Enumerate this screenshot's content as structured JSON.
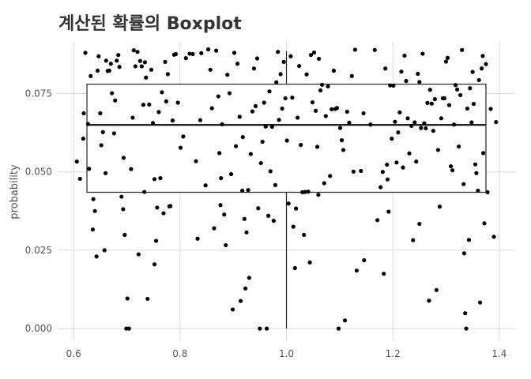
{
  "chart_data": {
    "type": "boxplot",
    "title": "계산된 확률의 Boxplot",
    "xlabel": "",
    "ylabel": "probability",
    "xlim": [
      0.57,
      1.43
    ],
    "ylim": [
      -0.004,
      0.0915
    ],
    "x_ticks": [
      0.6,
      0.8,
      1.0,
      1.2,
      1.4
    ],
    "x_tick_labels": [
      "0.6",
      "0.8",
      "1.0",
      "1.2",
      "1.4"
    ],
    "y_ticks": [
      0.0,
      0.025,
      0.05,
      0.075
    ],
    "y_tick_labels": [
      "0.000",
      "0.025",
      "0.050",
      "0.075"
    ],
    "grid": true,
    "box": {
      "x_center": 1.0,
      "x_from": 0.625,
      "x_to": 1.375,
      "q1": 0.0435,
      "median": 0.065,
      "q3": 0.078,
      "whisker_low": 0.0,
      "whisker_high": 0.0885
    },
    "points": [
      [
        0.606,
        0.0533
      ],
      [
        0.612,
        0.0478
      ],
      [
        0.618,
        0.0606
      ],
      [
        0.619,
        0.0687
      ],
      [
        0.622,
        0.088
      ],
      [
        0.627,
        0.0653
      ],
      [
        0.629,
        0.051
      ],
      [
        0.632,
        0.0806
      ],
      [
        0.636,
        0.0316
      ],
      [
        0.637,
        0.0413
      ],
      [
        0.64,
        0.0375
      ],
      [
        0.643,
        0.023
      ],
      [
        0.645,
        0.0823
      ],
      [
        0.647,
        0.0869
      ],
      [
        0.65,
        0.0687
      ],
      [
        0.652,
        0.0585
      ],
      [
        0.655,
        0.0627
      ],
      [
        0.658,
        0.025
      ],
      [
        0.661,
        0.0855
      ],
      [
        0.664,
        0.0822
      ],
      [
        0.667,
        0.0823
      ],
      [
        0.67,
        0.0845
      ],
      [
        0.672,
        0.0751
      ],
      [
        0.676,
        0.0623
      ],
      [
        0.678,
        0.0728
      ],
      [
        0.681,
        0.0855
      ],
      [
        0.684,
        0.0873
      ],
      [
        0.686,
        0.0835
      ],
      [
        0.69,
        0.0421
      ],
      [
        0.693,
        0.0381
      ],
      [
        0.696,
        0.0299
      ],
      [
        0.699,
        0.0
      ],
      [
        0.701,
        0.0096
      ],
      [
        0.704,
        0.0
      ],
      [
        0.708,
        0.0509
      ],
      [
        0.711,
        0.0673
      ],
      [
        0.713,
        0.0888
      ],
      [
        0.716,
        0.0837
      ],
      [
        0.72,
        0.0883
      ],
      [
        0.722,
        0.0237
      ],
      [
        0.725,
        0.0854
      ],
      [
        0.728,
        0.0837
      ],
      [
        0.731,
        0.0714
      ],
      [
        0.734,
        0.085
      ],
      [
        0.736,
        0.0801
      ],
      [
        0.739,
        0.0095
      ],
      [
        0.742,
        0.0715
      ],
      [
        0.746,
        0.0826
      ],
      [
        0.749,
        0.0656
      ],
      [
        0.752,
        0.0205
      ],
      [
        0.755,
        0.028
      ],
      [
        0.757,
        0.0386
      ],
      [
        0.76,
        0.0691
      ],
      [
        0.763,
        0.048
      ],
      [
        0.766,
        0.0754
      ],
      [
        0.769,
        0.0368
      ],
      [
        0.772,
        0.0851
      ],
      [
        0.774,
        0.0725
      ],
      [
        0.777,
        0.0812
      ],
      [
        0.78,
        0.039
      ],
      [
        0.782,
        0.0391
      ],
      [
        0.786,
        0.0664
      ],
      [
        0.789,
        0.0874
      ],
      [
        0.792,
        0.0876
      ],
      [
        0.796,
        0.0721
      ],
      [
        0.801,
        0.0577
      ],
      [
        0.806,
        0.0613
      ],
      [
        0.811,
        0.0863
      ],
      [
        0.818,
        0.0877
      ],
      [
        0.824,
        0.0876
      ],
      [
        0.83,
        0.0534
      ],
      [
        0.833,
        0.0287
      ],
      [
        0.84,
        0.0879
      ],
      [
        0.848,
        0.0457
      ],
      [
        0.853,
        0.0891
      ],
      [
        0.857,
        0.0826
      ],
      [
        0.86,
        0.0703
      ],
      [
        0.864,
        0.032
      ],
      [
        0.868,
        0.0887
      ],
      [
        0.872,
        0.0741
      ],
      [
        0.874,
        0.056
      ],
      [
        0.877,
        0.048
      ],
      [
        0.879,
        0.0652
      ],
      [
        0.883,
        0.0364
      ],
      [
        0.886,
        0.0266
      ],
      [
        0.889,
        0.081
      ],
      [
        0.893,
        0.0751
      ],
      [
        0.896,
        0.0493
      ],
      [
        0.899,
        0.0061
      ],
      [
        0.902,
        0.088
      ],
      [
        0.905,
        0.0582
      ],
      [
        0.908,
        0.0845
      ],
      [
        0.912,
        0.0676
      ],
      [
        0.914,
        0.0088
      ],
      [
        0.918,
        0.0611
      ],
      [
        0.921,
        0.035
      ],
      [
        0.923,
        0.0128
      ],
      [
        0.925,
        0.0307
      ],
      [
        0.928,
        0.0442
      ],
      [
        0.93,
        0.0162
      ],
      [
        0.933,
        0.0557
      ],
      [
        0.936,
        0.0693
      ],
      [
        0.939,
        0.083
      ],
      [
        0.942,
        0.071
      ],
      [
        0.945,
        0.0862
      ],
      [
        0.947,
        0.0384
      ],
      [
        0.95,
        0.0
      ],
      [
        0.952,
        0.0528
      ],
      [
        0.955,
        0.0596
      ],
      [
        0.958,
        0.0721
      ],
      [
        0.961,
        0.0645
      ],
      [
        0.963,
        0.0
      ],
      [
        0.966,
        0.036
      ],
      [
        0.968,
        0.0757
      ],
      [
        0.97,
        0.0502
      ],
      [
        0.973,
        0.0644
      ],
      [
        0.976,
        0.0344
      ],
      [
        0.979,
        0.0458
      ],
      [
        0.981,
        0.0786
      ],
      [
        0.984,
        0.0883
      ],
      [
        0.986,
        0.0666
      ],
      [
        0.989,
        0.0812
      ],
      [
        0.992,
        0.0702
      ],
      [
        0.995,
        0.0851
      ],
      [
        0.998,
        0.0735
      ],
      [
        1.001,
        0.06
      ],
      [
        1.004,
        0.0399
      ],
      [
        1.008,
        0.0869
      ],
      [
        1.011,
        0.0737
      ],
      [
        1.013,
        0.0325
      ],
      [
        1.016,
        0.0193
      ],
      [
        1.018,
        0.0383
      ],
      [
        1.021,
        0.0673
      ],
      [
        1.024,
        0.0838
      ],
      [
        1.027,
        0.0586
      ],
      [
        1.03,
        0.0435
      ],
      [
        1.033,
        0.0299
      ],
      [
        1.035,
        0.0436
      ],
      [
        1.038,
        0.0811
      ],
      [
        1.041,
        0.0437
      ],
      [
        1.044,
        0.0211
      ],
      [
        1.046,
        0.0873
      ],
      [
        1.049,
        0.0722
      ],
      [
        1.052,
        0.0881
      ],
      [
        1.055,
        0.0695
      ],
      [
        1.058,
        0.058
      ],
      [
        1.061,
        0.0861
      ],
      [
        1.064,
        0.076
      ],
      [
        1.067,
        0.0778
      ],
      [
        1.071,
        0.0464
      ],
      [
        1.074,
        0.0678
      ],
      [
        1.078,
        0.0773
      ],
      [
        1.082,
        0.0487
      ],
      [
        1.085,
        0.07
      ],
      [
        1.089,
        0.0823
      ],
      [
        1.092,
        0.0701
      ],
      [
        1.095,
        0.0704
      ],
      [
        1.098,
        0.0
      ],
      [
        1.101,
        0.064
      ],
      [
        1.104,
        0.0601
      ],
      [
        1.107,
        0.057
      ],
      [
        1.11,
        0.0026
      ],
      [
        1.114,
        0.0692
      ],
      [
        1.118,
        0.0657
      ],
      [
        1.123,
        0.0806
      ],
      [
        1.126,
        0.0501
      ],
      [
        1.129,
        0.089
      ],
      [
        1.132,
        0.0185
      ],
      [
        1.14,
        0.0503
      ],
      [
        1.145,
        0.0687
      ],
      [
        1.158,
        0.0651
      ],
      [
        1.166,
        0.0889
      ],
      [
        1.171,
        0.0346
      ],
      [
        1.177,
        0.0451
      ],
      [
        1.181,
        0.05
      ],
      [
        1.183,
        0.0175
      ],
      [
        1.186,
        0.083
      ],
      [
        1.189,
        0.0523
      ],
      [
        1.192,
        0.0373
      ],
      [
        1.195,
        0.0776
      ],
      [
        1.198,
        0.0606
      ],
      [
        1.201,
        0.0775
      ],
      [
        1.204,
        0.066
      ],
      [
        1.207,
        0.053
      ],
      [
        1.21,
        0.0626
      ],
      [
        1.213,
        0.069
      ],
      [
        1.216,
        0.082
      ],
      [
        1.219,
        0.0514
      ],
      [
        1.222,
        0.0871
      ],
      [
        1.225,
        0.079
      ],
      [
        1.228,
        0.0671
      ],
      [
        1.231,
        0.0559
      ],
      [
        1.235,
        0.0647
      ],
      [
        1.238,
        0.0282
      ],
      [
        1.241,
        0.0658
      ],
      [
        1.244,
        0.0533
      ],
      [
        1.247,
        0.0813
      ],
      [
        1.25,
        0.0787
      ],
      [
        1.253,
        0.064
      ],
      [
        1.256,
        0.0877
      ],
      [
        1.259,
        0.0655
      ],
      [
        1.262,
        0.0639
      ],
      [
        1.265,
        0.072
      ],
      [
        1.268,
        0.0089
      ],
      [
        1.27,
        0.0762
      ],
      [
        1.273,
        0.0718
      ],
      [
        1.276,
        0.0631
      ],
      [
        1.279,
        0.0732
      ],
      [
        1.282,
        0.0123
      ],
      [
        1.285,
        0.057
      ],
      [
        1.288,
        0.0389
      ],
      [
        1.291,
        0.0671
      ],
      [
        1.294,
        0.0735
      ],
      [
        1.297,
        0.0735
      ],
      [
        1.3,
        0.0852
      ],
      [
        1.303,
        0.0864
      ],
      [
        1.306,
        0.0713
      ],
      [
        1.309,
        0.0518
      ],
      [
        1.312,
        0.0505
      ],
      [
        1.315,
        0.0651
      ],
      [
        1.318,
        0.0777
      ],
      [
        1.321,
        0.0763
      ],
      [
        1.324,
        0.0581
      ],
      [
        1.327,
        0.0745
      ],
      [
        1.33,
        0.0889
      ],
      [
        1.333,
        0.0461
      ],
      [
        1.336,
        0.0049
      ],
      [
        1.338,
        0.0
      ],
      [
        1.34,
        0.0702
      ],
      [
        1.343,
        0.0283
      ],
      [
        1.345,
        0.0767
      ],
      [
        1.348,
        0.0658
      ],
      [
        1.35,
        0.0819
      ],
      [
        1.352,
        0.0717
      ],
      [
        1.355,
        0.0524
      ],
      [
        1.357,
        0.0496
      ],
      [
        1.36,
        0.044
      ],
      [
        1.362,
        0.0793
      ],
      [
        1.364,
        0.0083
      ],
      [
        1.367,
        0.083
      ],
      [
        1.369,
        0.087
      ],
      [
        1.372,
        0.0336
      ],
      [
        1.375,
        0.0844
      ],
      [
        1.378,
        0.0435
      ],
      [
        1.384,
        0.0701
      ],
      [
        1.39,
        0.0293
      ],
      [
        1.394,
        0.0659
      ],
      [
        1.37,
        0.056
      ],
      [
        1.334,
        0.024
      ],
      [
        1.25,
        0.0334
      ],
      [
        1.19,
        0.0476
      ],
      [
        1.146,
        0.0218
      ],
      [
        1.06,
        0.0427
      ],
      [
        0.917,
        0.044
      ],
      [
        0.876,
        0.0394
      ],
      [
        0.838,
        0.0665
      ],
      [
        0.752,
        0.0477
      ],
      [
        0.733,
        0.0436
      ],
      [
        0.694,
        0.0545
      ],
      [
        0.66,
        0.0496
      ]
    ]
  }
}
